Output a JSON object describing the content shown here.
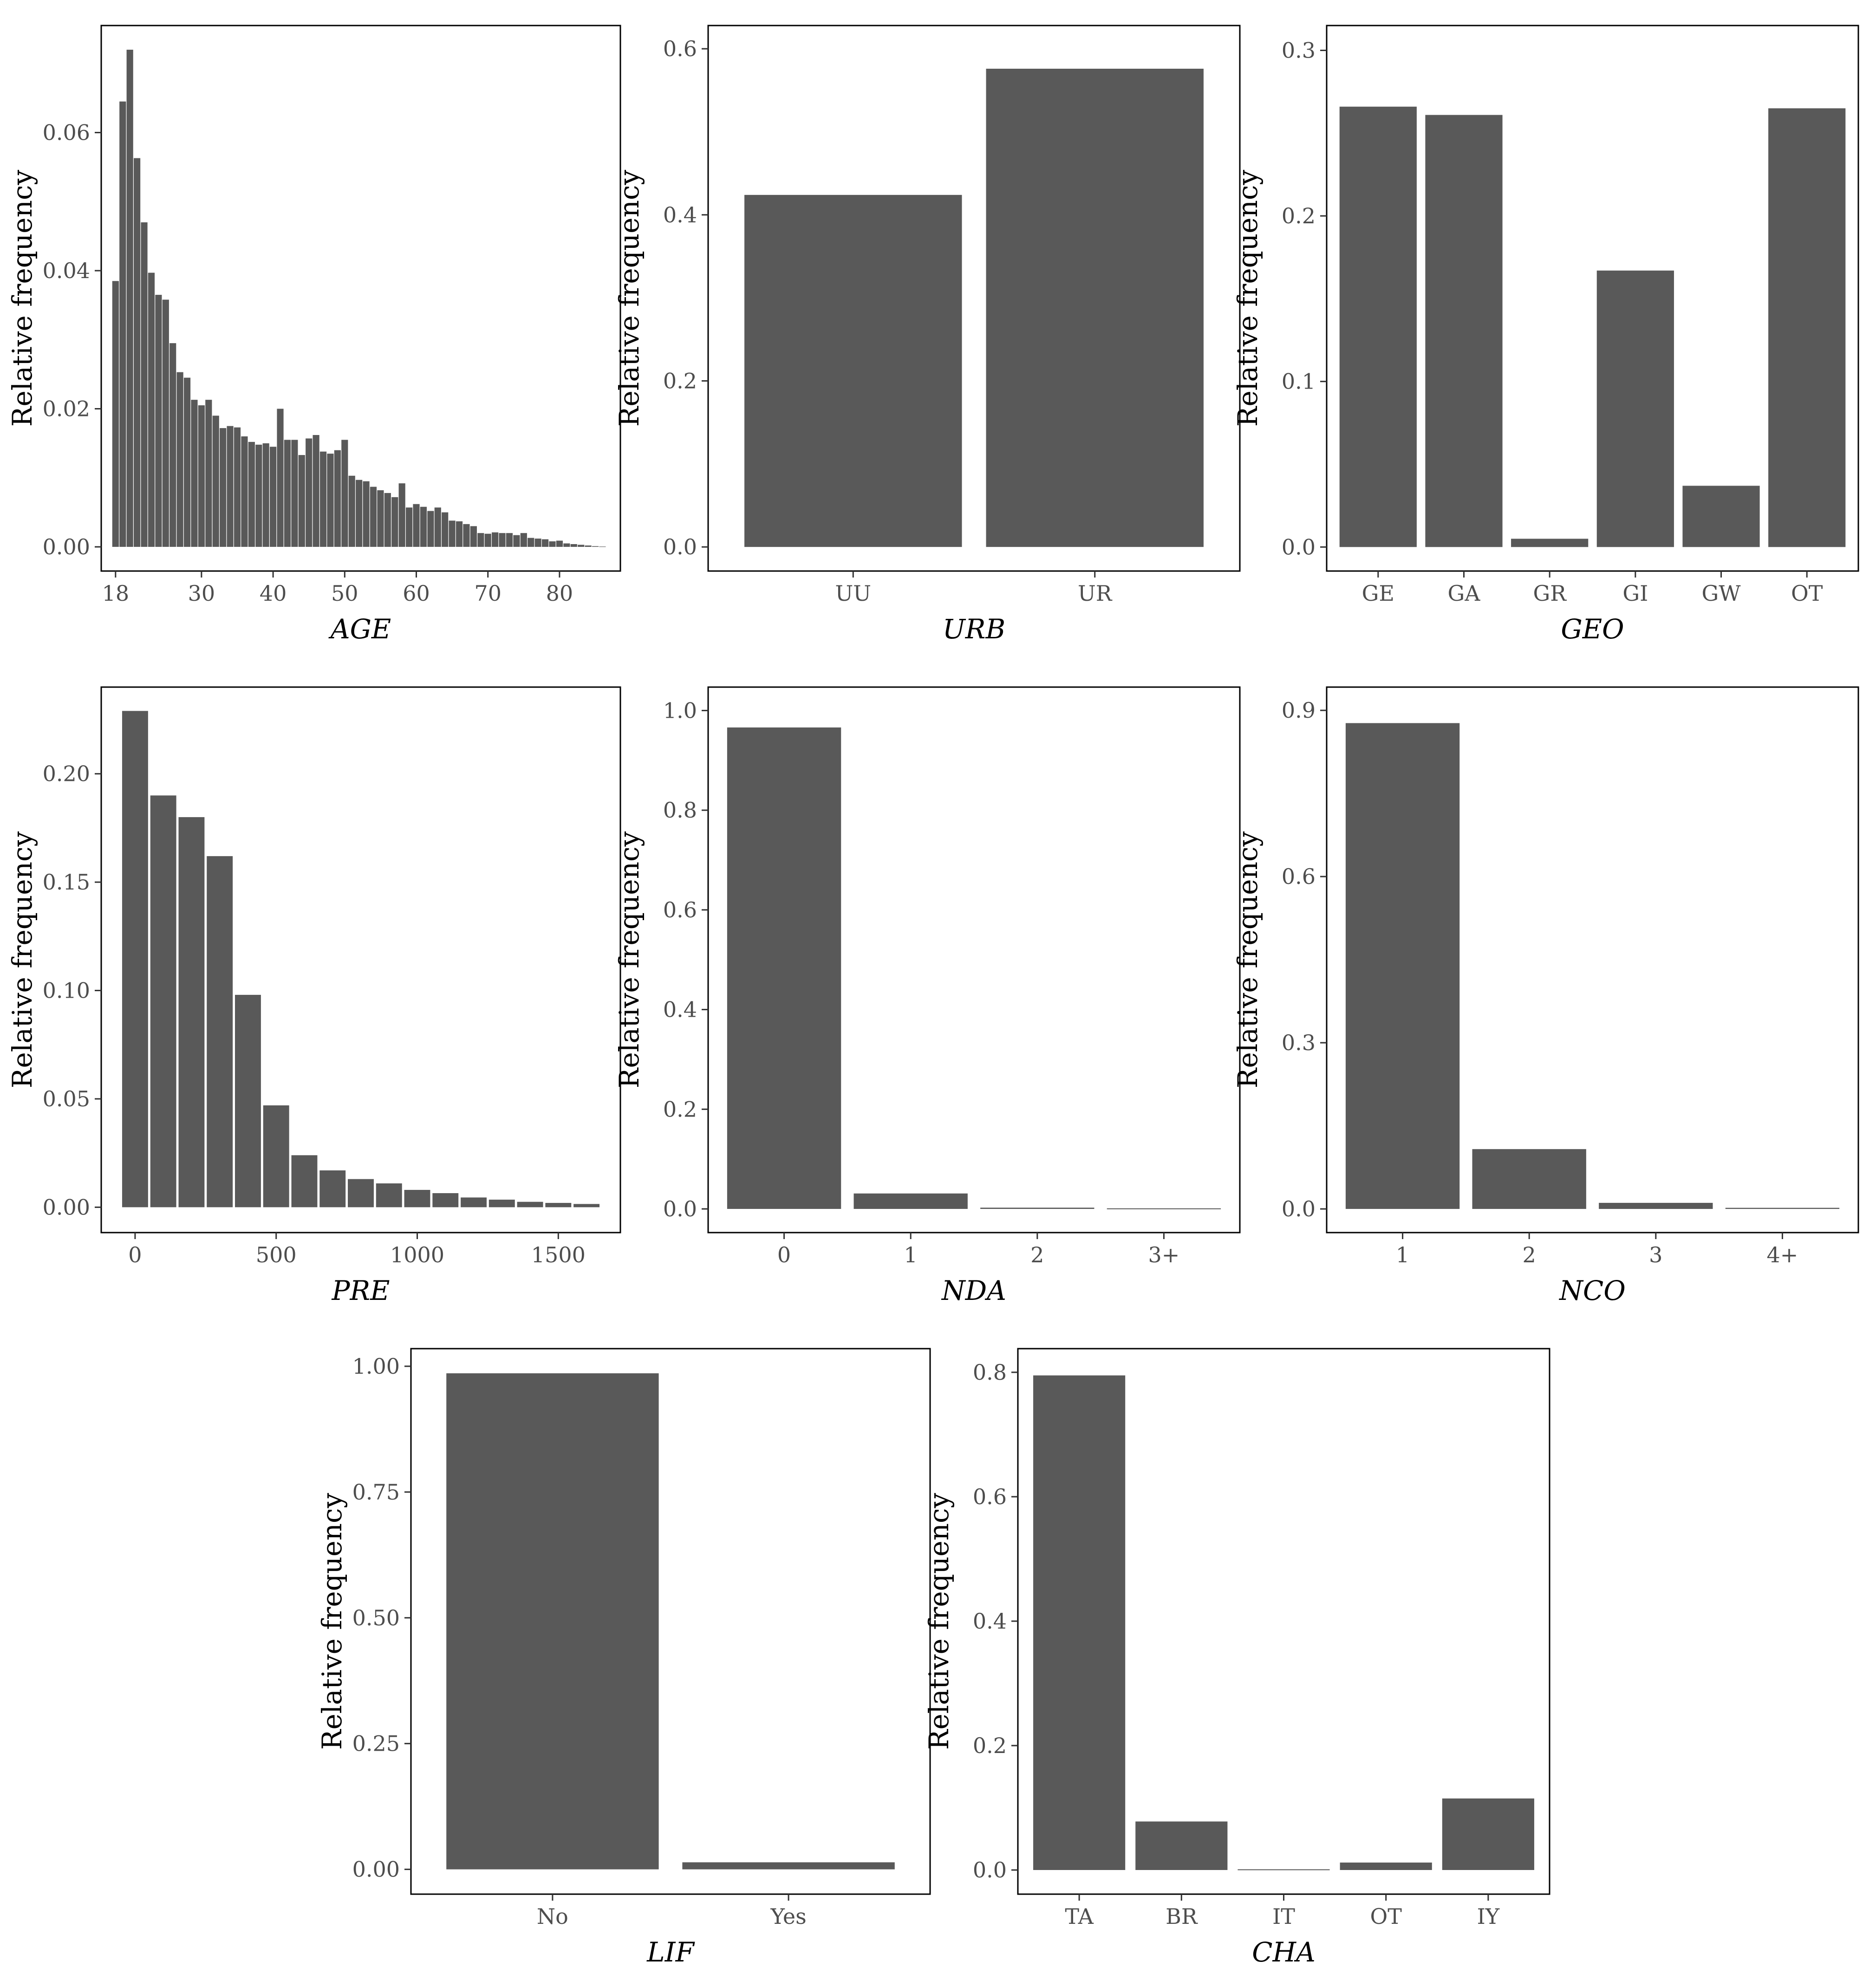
{
  "colors": {
    "bar": "#595959",
    "frame": "#000000",
    "tick_text": "#4d4d4d"
  },
  "chart_data": [
    {
      "id": "age",
      "type": "bar",
      "histogram": true,
      "xlabel": "AGE",
      "ylabel": "Relative frequency",
      "xlim": [
        16,
        88.5
      ],
      "xticks": [
        18,
        30,
        40,
        50,
        60,
        70,
        80
      ],
      "ylim": [
        -0.0035,
        0.0755
      ],
      "yticks": [
        "0.00",
        "0.02",
        "0.04",
        "0.06"
      ],
      "x": [
        18,
        19,
        20,
        21,
        22,
        23,
        24,
        25,
        26,
        27,
        28,
        29,
        30,
        31,
        32,
        33,
        34,
        35,
        36,
        37,
        38,
        39,
        40,
        41,
        42,
        43,
        44,
        45,
        46,
        47,
        48,
        49,
        50,
        51,
        52,
        53,
        54,
        55,
        56,
        57,
        58,
        59,
        60,
        61,
        62,
        63,
        64,
        65,
        66,
        67,
        68,
        69,
        70,
        71,
        72,
        73,
        74,
        75,
        76,
        77,
        78,
        79,
        80,
        81,
        82,
        83,
        84,
        85,
        86
      ],
      "values": [
        0.0385,
        0.0645,
        0.072,
        0.0563,
        0.047,
        0.0397,
        0.0365,
        0.0358,
        0.0295,
        0.0253,
        0.0245,
        0.0213,
        0.0205,
        0.0213,
        0.019,
        0.0172,
        0.0175,
        0.0173,
        0.016,
        0.0152,
        0.0148,
        0.015,
        0.0145,
        0.02,
        0.0155,
        0.0155,
        0.0133,
        0.0157,
        0.0162,
        0.0138,
        0.0135,
        0.014,
        0.0155,
        0.0103,
        0.0097,
        0.0095,
        0.0087,
        0.0082,
        0.0078,
        0.0072,
        0.0092,
        0.0057,
        0.0062,
        0.0058,
        0.0052,
        0.0057,
        0.005,
        0.0038,
        0.0037,
        0.0033,
        0.003,
        0.002,
        0.0019,
        0.0021,
        0.002,
        0.002,
        0.0017,
        0.002,
        0.0013,
        0.0012,
        0.0011,
        0.0008,
        0.0009,
        0.0005,
        0.0004,
        0.0003,
        0.0002,
        0.0001,
        5e-05
      ]
    },
    {
      "id": "urb",
      "type": "bar",
      "xlabel": "URB",
      "ylabel": "Relative frequency",
      "categories": [
        "UU",
        "UR"
      ],
      "values": [
        0.424,
        0.576
      ],
      "ylim": [
        -0.029,
        0.628
      ],
      "yticks": [
        "0.0",
        "0.2",
        "0.4",
        "0.6"
      ]
    },
    {
      "id": "geo",
      "type": "bar",
      "xlabel": "GEO",
      "ylabel": "Relative frequency",
      "categories": [
        "GE",
        "GA",
        "GR",
        "GI",
        "GW",
        "OT"
      ],
      "values": [
        0.266,
        0.261,
        0.005,
        0.167,
        0.037,
        0.265
      ],
      "ylim": [
        -0.0145,
        0.315
      ],
      "yticks": [
        "0.0",
        "0.1",
        "0.2",
        "0.3"
      ]
    },
    {
      "id": "pre",
      "type": "bar",
      "histogram": true,
      "xlabel": "PRE",
      "ylabel": "Relative frequency",
      "xlim": [
        -120,
        1720
      ],
      "xticks": [
        0,
        500,
        1000,
        1500
      ],
      "x": [
        0,
        100,
        200,
        300,
        400,
        500,
        600,
        700,
        800,
        900,
        1000,
        1100,
        1200,
        1300,
        1400,
        1500,
        1600
      ],
      "values": [
        0.229,
        0.19,
        0.18,
        0.162,
        0.098,
        0.047,
        0.024,
        0.017,
        0.013,
        0.011,
        0.008,
        0.0065,
        0.0045,
        0.0035,
        0.0025,
        0.002,
        0.0015
      ],
      "ylim": [
        -0.0117,
        0.24
      ],
      "yticks": [
        "0.00",
        "0.05",
        "0.10",
        "0.15",
        "0.20"
      ]
    },
    {
      "id": "nda",
      "type": "bar",
      "xlabel": "NDA",
      "ylabel": "Relative frequency",
      "categories": [
        "0",
        "1",
        "2",
        "3+"
      ],
      "values": [
        0.966,
        0.031,
        0.0025,
        0.0012
      ],
      "ylim": [
        -0.0475,
        1.047
      ],
      "yticks": [
        "0.0",
        "0.2",
        "0.4",
        "0.6",
        "0.8",
        "1.0"
      ]
    },
    {
      "id": "nco",
      "type": "bar",
      "xlabel": "NCO",
      "ylabel": "Relative frequency",
      "categories": [
        "1",
        "2",
        "3",
        "4+"
      ],
      "values": [
        0.877,
        0.108,
        0.011,
        0.002
      ],
      "ylim": [
        -0.0427,
        0.942
      ],
      "yticks": [
        "0.0",
        "0.3",
        "0.6",
        "0.9"
      ]
    },
    {
      "id": "lif",
      "type": "bar",
      "xlabel": "LIF",
      "ylabel": "Relative frequency",
      "categories": [
        "No",
        "Yes"
      ],
      "values": [
        0.986,
        0.014
      ],
      "ylim": [
        -0.0493,
        1.035
      ],
      "yticks": [
        "0.00",
        "0.25",
        "0.50",
        "0.75",
        "1.00"
      ]
    },
    {
      "id": "cha",
      "type": "bar",
      "xlabel": "CHA",
      "ylabel": "Relative frequency",
      "categories": [
        "TA",
        "BR",
        "IT",
        "OT",
        "IY"
      ],
      "values": [
        0.795,
        0.078,
        0.0012,
        0.012,
        0.115
      ],
      "ylim": [
        -0.0388,
        0.838
      ],
      "yticks": [
        "0.0",
        "0.2",
        "0.4",
        "0.6",
        "0.8"
      ]
    }
  ]
}
